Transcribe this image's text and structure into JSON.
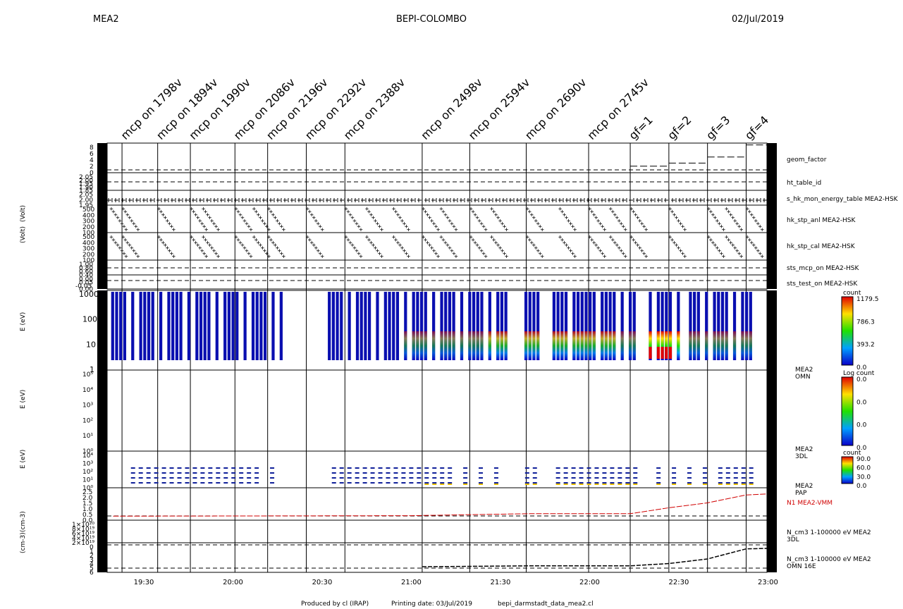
{
  "header": {
    "left": "MEA2",
    "center": "BEPI-COLOMBO",
    "right": "02/Jul/2019"
  },
  "footer": {
    "produced": "Produced by cl (IRAP)",
    "printing": "Printing date: 03/Jul/2019",
    "file": "bepi_darmstadt_data_mea2.cl"
  },
  "annotations": [
    "mcp on 1798v",
    "mcp on 1894v",
    "mcp on 1990v",
    "mcp on 2086v",
    "mcp on 2196v",
    "mcp on 2292v",
    "mcp on 2388v",
    "mcp on 2498v",
    "mcp on 2594v",
    "mcp on 2690v",
    "mcp on 2745v",
    "gf=1",
    "gf=2",
    "gf=3",
    "gf=4"
  ],
  "panel_labels": {
    "geom": "geom_factor",
    "ht": "ht_table_id",
    "energy_table": "s_hk_mon_energy_table MEA2-HSK",
    "anl": "hk_stp_anl MEA2-HSK",
    "cal": "hk_stp_cal MEA2-HSK",
    "mcp_on": "sts_mcp_on MEA2-HSK",
    "test_on": "sts_test_on MEA2-HSK",
    "omn_name": "MEA2",
    "omn_sub": "OMN",
    "dl_name": "MEA2",
    "dl_sub": "3DL",
    "pap_name": "MEA2",
    "pap_sub": "PAP",
    "n1": "N1 MEA2-VMM",
    "ncm1": "N_cm3 1-100000 eV MEA2",
    "ncm1_sub": "3DL",
    "ncm2": "N_cm3 1-100000 eV MEA2",
    "ncm2_sub": "OMN 16E"
  },
  "y_axis_titles": {
    "volt_a": "(Volt)",
    "volt_b": "(Volt)",
    "e1": "E (eV)",
    "e2": "E (eV)",
    "e3": "E (eV)",
    "cm_a": "(cm-3)",
    "cm_b": "(cm-3)"
  },
  "colorbars": [
    {
      "title": "count",
      "ticks": [
        "1179.5",
        "786.3",
        "393.2",
        "0.0"
      ]
    },
    {
      "title": "Log  count",
      "ticks": [
        "0.0",
        "0.0",
        "0.0",
        "0.0"
      ]
    },
    {
      "title": "count",
      "ticks": [
        "90.0",
        "60.0",
        "30.0",
        "0.0"
      ]
    }
  ],
  "tick_labels": {
    "geom": [
      "8",
      "6",
      "4",
      "2",
      "0"
    ],
    "ht": [
      "2.05",
      "2.00",
      "1.95",
      "1.90",
      "1.85"
    ],
    "et": [
      "2.05",
      "2.00",
      "1.95"
    ],
    "anl": [
      "500",
      "400",
      "300",
      "200",
      "100"
    ],
    "cal": [
      "500",
      "400",
      "300",
      "200",
      "100"
    ],
    "mcp": [
      "1.00",
      "0.80",
      "0.60",
      "0.40"
    ],
    "test": [
      "0.00",
      "0.05",
      "-0.05",
      "0.00"
    ],
    "spec": [
      "1000",
      "100",
      "10",
      "1"
    ],
    "omn": [
      "10⁵",
      "10⁴",
      "10³",
      "10²",
      "10¹",
      "10⁰"
    ],
    "dl": [
      "10⁴",
      "10³",
      "10²",
      "10¹",
      "10⁰"
    ],
    "pap": [
      "2.5",
      "2.0",
      "1.5",
      "1.0",
      "0.5",
      "0.0"
    ],
    "ncm3": [
      "1×10²⁰",
      "8×10¹⁹",
      "6×10¹⁹",
      "4×10¹⁹",
      "2×10¹⁹"
    ],
    "omn16": [
      "0",
      "1",
      "2",
      "3",
      "4",
      "5",
      "6"
    ]
  },
  "chart_data": {
    "type": "line",
    "x_unit": "UT",
    "x_ticks": [
      "19:30",
      "20:00",
      "20:30",
      "21:00",
      "21:30",
      "22:00",
      "22:30",
      "23:00"
    ],
    "xlim": [
      "19:18",
      "23:00"
    ],
    "event_times_min": [
      1163,
      1175,
      1186,
      1201,
      1212,
      1225,
      1238,
      1264,
      1280,
      1299,
      1320,
      1334,
      1347,
      1360,
      1373
    ],
    "series": [
      {
        "name": "geom_factor",
        "x_min": [
          1334,
          1347,
          1360,
          1373
        ],
        "values": [
          1,
          2,
          4,
          8
        ]
      },
      {
        "name": "N1 MEA2-VMM",
        "x_min": [
          1160,
          1260,
          1300,
          1334,
          1347,
          1360,
          1373,
          1380
        ],
        "values": [
          0.05,
          0.1,
          0.3,
          0.3,
          0.9,
          1.4,
          2.2,
          2.3
        ]
      },
      {
        "name": "N_cm3 1-100000 eV MEA2 OMN 16E",
        "x_min": [
          1264,
          1300,
          1334,
          1347,
          1360,
          1373,
          1380
        ],
        "values": [
          0.3,
          0.5,
          0.5,
          1.0,
          2.0,
          4.2,
          4.3
        ]
      }
    ],
    "spectrogram_energy_ylim": [
      1,
      2000
    ]
  }
}
